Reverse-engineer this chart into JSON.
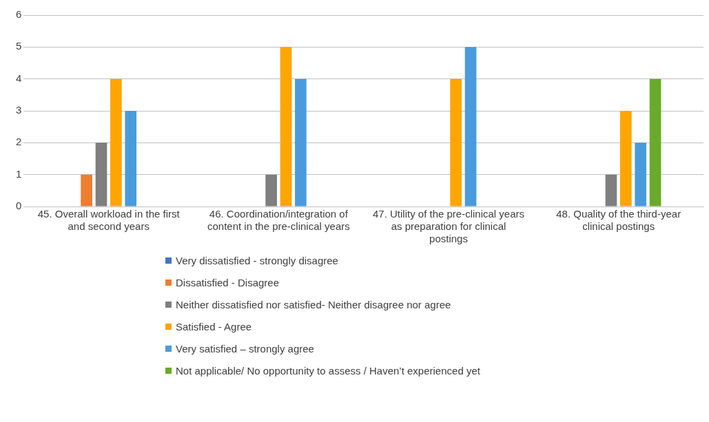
{
  "chart_data": {
    "type": "bar",
    "categories": [
      "45. Overall workload in the first and second years",
      "46. Coordination/integration of content in the pre-clinical years",
      "47. Utility of the pre-clinical years as preparation for clinical postings",
      "48. Quality of the third-year clinical postings"
    ],
    "series": [
      {
        "name": "Very dissatisfied - strongly disagree",
        "color": "#4472c4",
        "values": [
          0,
          0,
          0,
          0
        ]
      },
      {
        "name": "Dissatisfied - Disagree",
        "color": "#ed7d31",
        "values": [
          1,
          0,
          0,
          0
        ]
      },
      {
        "name": "Neither dissatisfied nor satisfied- Neither disagree nor agree",
        "color": "#7f7f7f",
        "values": [
          2,
          1,
          0,
          1
        ]
      },
      {
        "name": "Satisfied - Agree",
        "color": "#ffa500",
        "values": [
          4,
          5,
          4,
          3
        ]
      },
      {
        "name": "Very satisfied – strongly agree",
        "color": "#4a9bdc",
        "values": [
          3,
          4,
          5,
          2
        ]
      },
      {
        "name": "Not applicable/ No opportunity to assess / Haven’t experienced yet",
        "color": "#6aaa2a",
        "values": [
          0,
          0,
          0,
          4
        ]
      }
    ],
    "ylim": [
      0,
      6
    ],
    "yticks": [
      0,
      1,
      2,
      3,
      4,
      5,
      6
    ],
    "grid": "y",
    "legend": "bottom"
  }
}
